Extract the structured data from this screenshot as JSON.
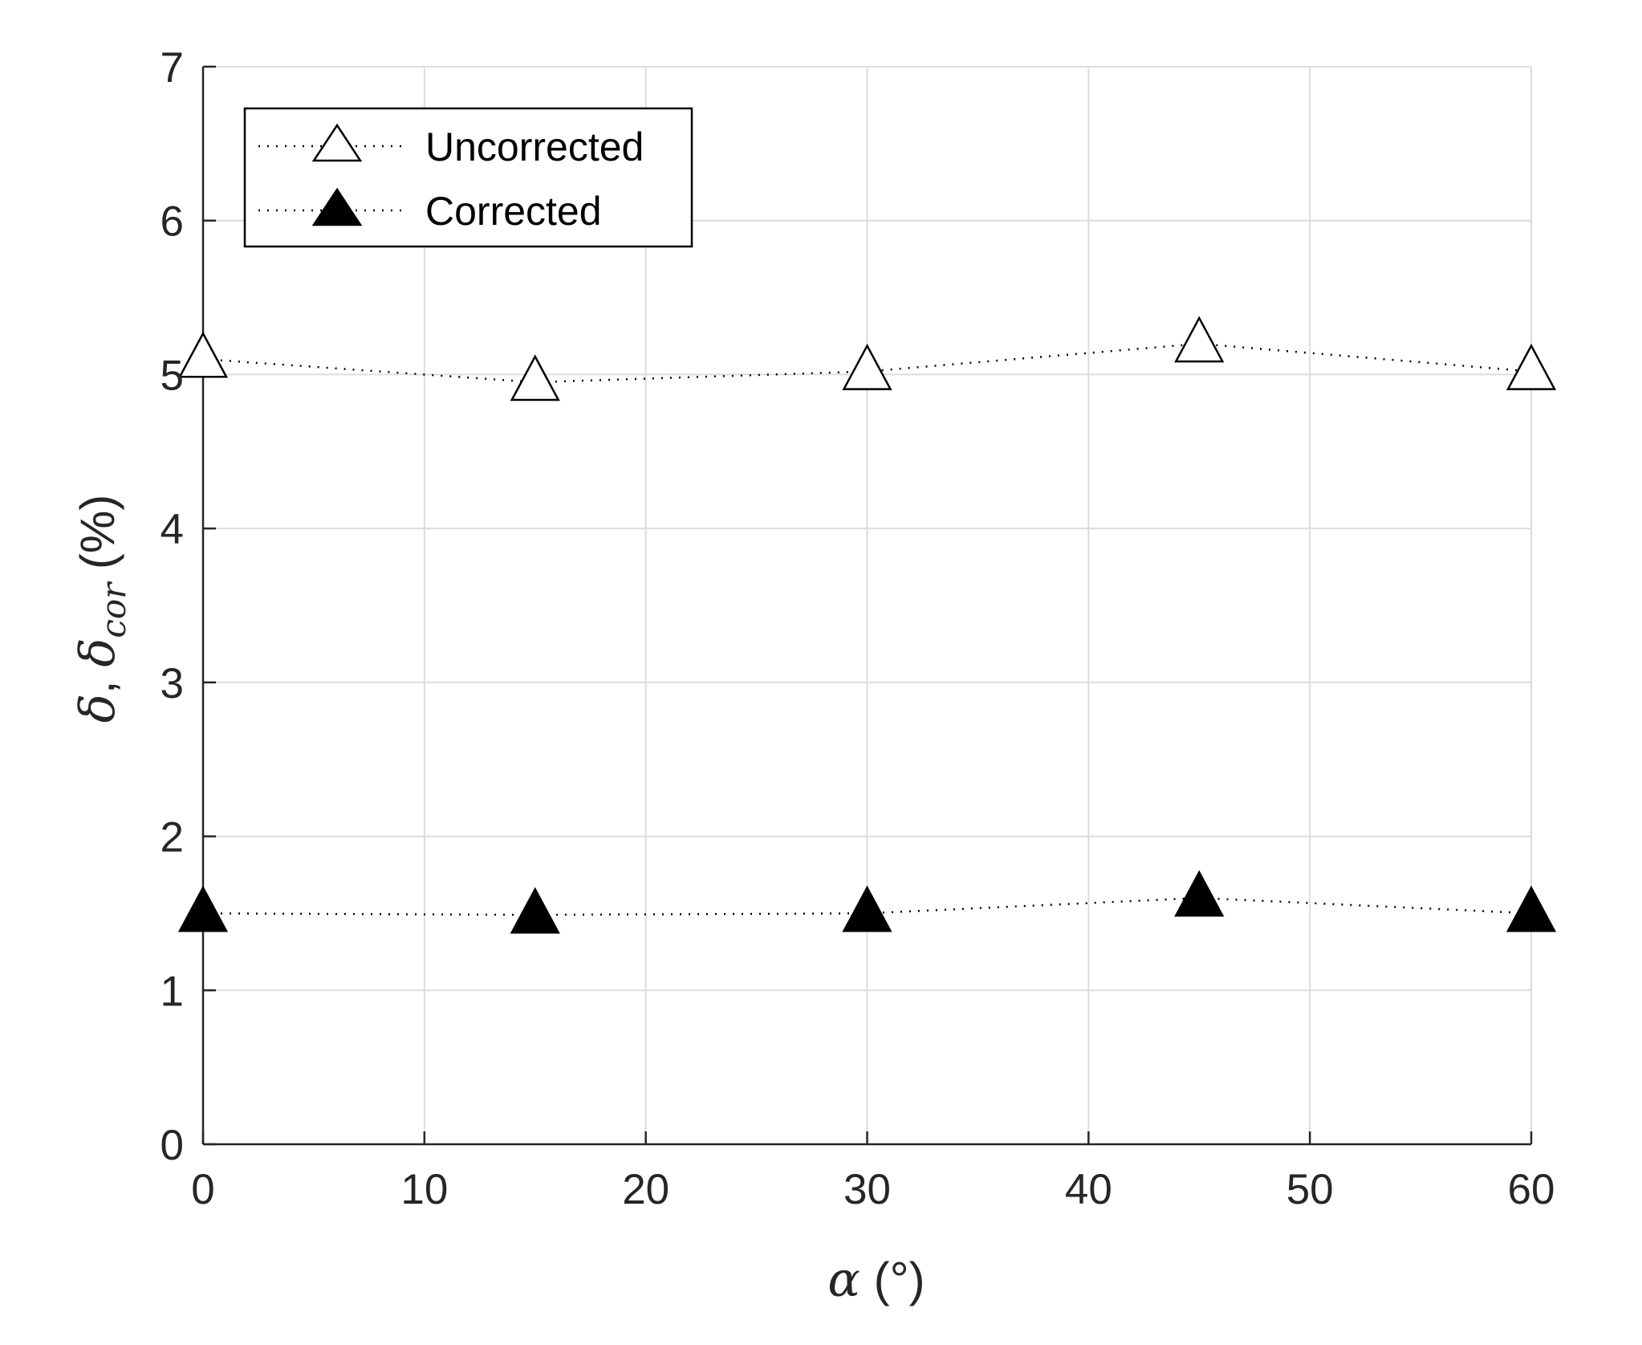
{
  "chart_data": {
    "type": "line",
    "x": [
      0,
      15,
      30,
      45,
      60
    ],
    "series": [
      {
        "name": "Uncorrected",
        "marker": "triangle-open",
        "line": "dotted",
        "values": [
          5.1,
          4.95,
          5.02,
          5.2,
          5.02
        ]
      },
      {
        "name": "Corrected",
        "marker": "triangle-filled",
        "line": "dotted",
        "values": [
          1.5,
          1.49,
          1.5,
          1.6,
          1.5
        ]
      }
    ],
    "xlim": [
      0,
      60
    ],
    "ylim": [
      0,
      7
    ],
    "xticks": [
      "0",
      "10",
      "20",
      "30",
      "40",
      "50",
      "60"
    ],
    "yticks": [
      "0",
      "1",
      "2",
      "3",
      "4",
      "5",
      "6",
      "7"
    ],
    "xlabel": {
      "symbol": "α",
      "unit": " (°)"
    },
    "ylabel": {
      "symbol1": "δ",
      "sep": ", ",
      "symbol2": "δ",
      "subscript": "cor",
      "unit": " (%)"
    },
    "grid": true,
    "legend_position": "top-left"
  },
  "colors": {
    "axis": "#262626",
    "grid": "#dcdcdc",
    "marker": "#000000"
  }
}
